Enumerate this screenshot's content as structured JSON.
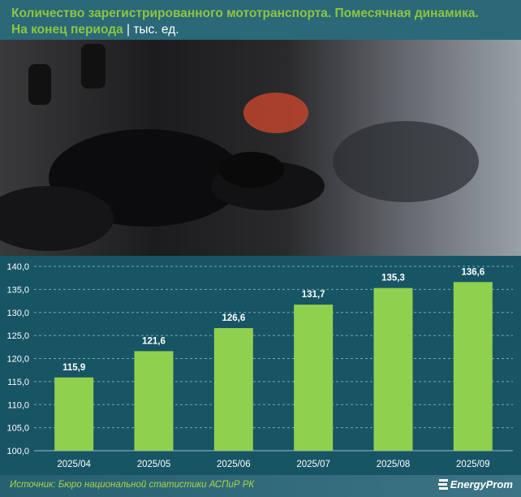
{
  "header": {
    "title_line1": "Количество зарегистрированного мототранспорта. Помесячная динамика.",
    "title_line2": "На конец периода",
    "separator": " | ",
    "unit": "тыс. ед."
  },
  "footer": {
    "source": "Источник: Бюро национальной статистики АСПиР РК",
    "logo_text": "EnergyProm"
  },
  "colors": {
    "bar": "#8fd14f",
    "header_text": "#8cc63f",
    "background": "#175565"
  },
  "chart_data": {
    "type": "bar",
    "categories": [
      "2025/04",
      "2025/05",
      "2025/06",
      "2025/07",
      "2025/08",
      "2025/09"
    ],
    "values": [
      115.9,
      121.6,
      126.6,
      131.7,
      135.3,
      136.6
    ],
    "data_labels": [
      "115,9",
      "121,6",
      "126,6",
      "131,7",
      "135,3",
      "136,6"
    ],
    "ylim": [
      100,
      140
    ],
    "yticks": [
      "100,0",
      "105,0",
      "110,0",
      "115,0",
      "120,0",
      "125,0",
      "130,0",
      "135,0",
      "140,0"
    ],
    "grid": true,
    "title": "",
    "xlabel": "",
    "ylabel": ""
  }
}
